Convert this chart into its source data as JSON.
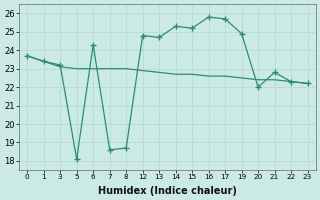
{
  "xlabel": "Humidex (Indice chaleur)",
  "bg_color": "#cceae4",
  "line_color": "#2e8b74",
  "grid_color": "#b8ddd7",
  "x_labels": [
    "0",
    "1",
    "3",
    "5",
    "6",
    "7",
    "8",
    "12",
    "13",
    "14",
    "15",
    "16",
    "17",
    "19",
    "20",
    "21",
    "22",
    "23"
  ],
  "line1_y": [
    23.7,
    23.4,
    23.2,
    18.1,
    24.3,
    18.6,
    18.7,
    24.8,
    24.7,
    25.3,
    25.2,
    25.8,
    25.7,
    24.9,
    22.0,
    22.8,
    22.3,
    22.2
  ],
  "line2_y": [
    23.7,
    23.4,
    23.1,
    23.0,
    23.0,
    23.0,
    23.0,
    22.9,
    22.8,
    22.7,
    22.7,
    22.6,
    22.6,
    22.5,
    22.4,
    22.4,
    22.3,
    22.2
  ],
  "ylim": [
    17.5,
    26.5
  ],
  "yticks": [
    18,
    19,
    20,
    21,
    22,
    23,
    24,
    25,
    26
  ]
}
